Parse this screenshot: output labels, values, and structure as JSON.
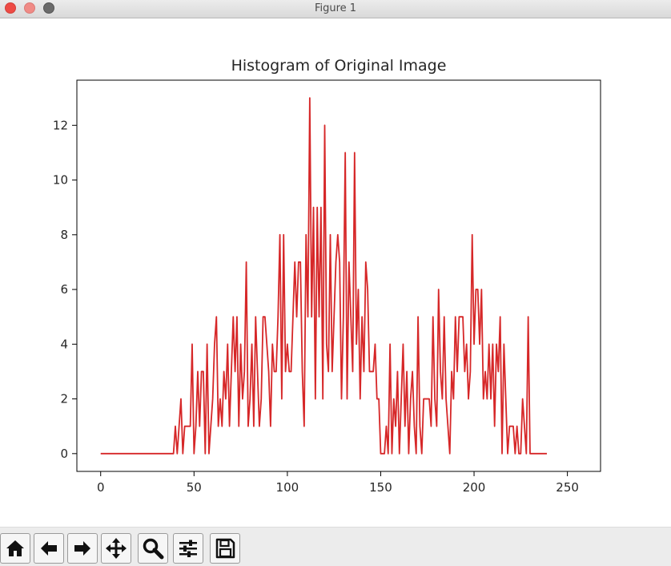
{
  "window": {
    "title": "Figure 1"
  },
  "toolbar": {
    "buttons": [
      {
        "name": "home-icon"
      },
      {
        "name": "back-arrow-icon"
      },
      {
        "name": "forward-arrow-icon"
      },
      {
        "name": "pan-move-icon"
      },
      {
        "name": "zoom-magnifier-icon"
      },
      {
        "name": "configure-subplots-icon"
      },
      {
        "name": "save-floppy-icon"
      }
    ]
  },
  "chart_data": {
    "type": "line",
    "title": "Histogram of Original Image",
    "xlabel": "",
    "ylabel": "",
    "xlim": [
      -12.75,
      267.75
    ],
    "ylim": [
      -0.65,
      13.65
    ],
    "xticks": [
      0,
      50,
      100,
      150,
      200,
      250
    ],
    "yticks": [
      0,
      2,
      4,
      6,
      8,
      10,
      12
    ],
    "grid": false,
    "line_color": "#d62728",
    "x_start": 0,
    "x_step": 1,
    "values": [
      0,
      0,
      0,
      0,
      0,
      0,
      0,
      0,
      0,
      0,
      0,
      0,
      0,
      0,
      0,
      0,
      0,
      0,
      0,
      0,
      0,
      0,
      0,
      0,
      0,
      0,
      0,
      0,
      0,
      0,
      0,
      0,
      0,
      0,
      0,
      0,
      0,
      0,
      0,
      0,
      1,
      0,
      1,
      2,
      0,
      1,
      1,
      1,
      1,
      4,
      0,
      1,
      3,
      1,
      3,
      3,
      0,
      4,
      0,
      1,
      2,
      4,
      5,
      1,
      2,
      1,
      3,
      2,
      4,
      1,
      3,
      5,
      3,
      5,
      1,
      4,
      2,
      3,
      7,
      1,
      2,
      4,
      1,
      5,
      3,
      1,
      2,
      5,
      5,
      4,
      3,
      1,
      4,
      3,
      3,
      5,
      8,
      2,
      8,
      3,
      4,
      3,
      3,
      5,
      7,
      5,
      7,
      7,
      3,
      1,
      8,
      5,
      13,
      5,
      9,
      2,
      9,
      5,
      9,
      2,
      12,
      4,
      3,
      8,
      3,
      5,
      7,
      8,
      7,
      2,
      5,
      11,
      2,
      7,
      5,
      3,
      11,
      4,
      6,
      2,
      5,
      3,
      7,
      6,
      3,
      3,
      3,
      4,
      2,
      2,
      0,
      0,
      0,
      1,
      0,
      4,
      0,
      2,
      1,
      3,
      0,
      2,
      4,
      1,
      3,
      0,
      2,
      3,
      1,
      0,
      5,
      1,
      0,
      2,
      2,
      2,
      2,
      1,
      5,
      2,
      1,
      6,
      3,
      2,
      5,
      2,
      1,
      0,
      3,
      2,
      5,
      3,
      5,
      5,
      5,
      3,
      4,
      2,
      3,
      8,
      4,
      6,
      6,
      4,
      6,
      2,
      3,
      2,
      4,
      2,
      4,
      1,
      4,
      3,
      5,
      0,
      4,
      2,
      0,
      1,
      1,
      1,
      0,
      1,
      0,
      0,
      2,
      1,
      0,
      5,
      0,
      0,
      0,
      0,
      0,
      0,
      0,
      0,
      0,
      0
    ]
  }
}
